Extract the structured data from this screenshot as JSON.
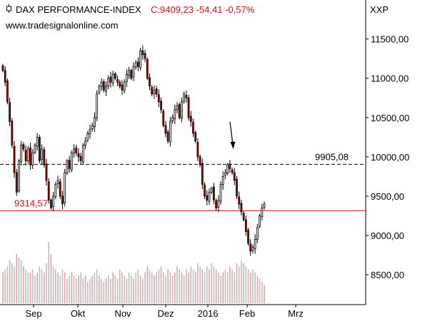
{
  "header": {
    "instrument": "DAX PERFORMANCE-INDEX",
    "quote": "C:9409,23 -54,41 -0,57%",
    "source": "www.tradesignalonline.com",
    "ticker": "XXP",
    "colors": {
      "quote": "#d01010",
      "up_candle": "#ffffff",
      "down_candle": "#b00000",
      "support_line": "#d01010",
      "resistance_line": "#000000"
    }
  },
  "chart_data": {
    "type": "candlestick",
    "title": "DAX PERFORMANCE-INDEX",
    "x_tick_labels": [
      "Sep",
      "Okt",
      "Nov",
      "Dez",
      "2016",
      "Feb",
      "Mrz"
    ],
    "y_tick_labels": [
      "11500,00",
      "11000,00",
      "10500,00",
      "10000,00",
      "9500,00",
      "9000,00",
      "8500,00"
    ],
    "y_ticks": [
      11500,
      11000,
      10500,
      10000,
      9500,
      9000,
      8500
    ],
    "ylim": [
      8120,
      11760
    ],
    "grid": false,
    "horizontal_lines": [
      {
        "label": "9905,08",
        "value": 9905.08,
        "style": "dashed",
        "color": "#000000"
      },
      {
        "label": "9314,57",
        "value": 9314.57,
        "style": "solid",
        "color": "#d01010"
      }
    ],
    "annotation": {
      "type": "arrow",
      "target_value": 9905
    },
    "closes": [
      11100,
      10950,
      10700,
      10450,
      10150,
      9800,
      9550,
      9950,
      10150,
      10100,
      9950,
      10100,
      9900,
      10050,
      10150,
      10250,
      9950,
      10100,
      9900,
      9700,
      9450,
      9350,
      9500,
      9650,
      9700,
      9500,
      9400,
      9800,
      9950,
      9850,
      10050,
      10100,
      10050,
      10000,
      9950,
      10150,
      10200,
      10300,
      10350,
      10400,
      10500,
      10800,
      10900,
      10950,
      10850,
      10900,
      11000,
      10950,
      11050,
      11000,
      10950,
      10900,
      10850,
      10950,
      11050,
      11100,
      11000,
      11150,
      11200,
      11150,
      11350,
      11300,
      11250,
      11000,
      10900,
      10800,
      10850,
      10800,
      10700,
      10600,
      10400,
      10300,
      10200,
      10450,
      10500,
      10600,
      10650,
      10500,
      10700,
      10800,
      10750,
      10500,
      10450,
      10300,
      10200,
      10000,
      9900,
      9650,
      9500,
      9450,
      9550,
      9600,
      9450,
      9350,
      9450,
      9650,
      9750,
      9800,
      9900,
      9850,
      9800,
      9700,
      9500,
      9400,
      9300,
      9200,
      9050,
      8900,
      8800,
      8850,
      8950,
      9100,
      9250,
      9350,
      9400
    ],
    "volumes": [
      0.5,
      0.55,
      0.6,
      0.7,
      0.65,
      0.6,
      0.8,
      0.75,
      0.7,
      0.6,
      0.55,
      0.5,
      0.5,
      0.55,
      0.45,
      0.5,
      0.6,
      0.55,
      0.5,
      0.65,
      1.0,
      0.8,
      0.6,
      0.55,
      0.5,
      0.45,
      0.55,
      0.5,
      0.4,
      0.45,
      0.5,
      0.45,
      0.4,
      0.45,
      0.5,
      0.4,
      0.45,
      0.35,
      0.4,
      0.45,
      0.5,
      0.55,
      0.45,
      0.4,
      0.35,
      0.4,
      0.45,
      0.4,
      0.5,
      0.45,
      0.4,
      0.55,
      0.5,
      0.45,
      0.4,
      0.5,
      0.45,
      0.4,
      0.5,
      0.55,
      0.45,
      0.4,
      0.5,
      0.6,
      0.55,
      0.5,
      0.45,
      0.5,
      0.55,
      0.6,
      0.5,
      0.45,
      0.55,
      0.5,
      0.45,
      0.5,
      0.6,
      0.55,
      0.5,
      0.45,
      0.55,
      0.5,
      0.6,
      0.55,
      0.5,
      0.65,
      0.6,
      0.55,
      0.5,
      0.6,
      0.55,
      0.65,
      0.6,
      0.55,
      0.5,
      0.45,
      0.5,
      0.55,
      0.5,
      0.6,
      0.55,
      0.5,
      0.65,
      0.6,
      0.7,
      0.65,
      0.6,
      0.55,
      0.5,
      0.55,
      0.5,
      0.45,
      0.4,
      0.35,
      0.3
    ]
  }
}
